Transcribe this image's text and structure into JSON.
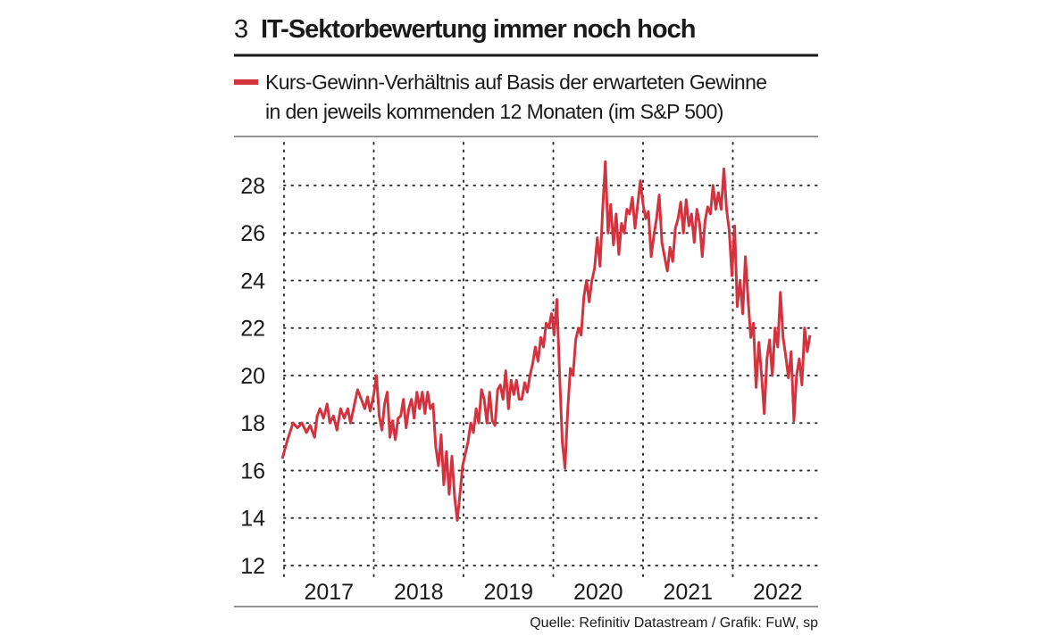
{
  "chart_data": {
    "type": "line",
    "number": "3",
    "title": "IT-Sektorbewertung immer noch hoch",
    "source": "Quelle: Refinitiv Datastream / Grafik: FuW, sp",
    "xlim": [
      2016.95,
      2022.97
    ],
    "xticks": [
      {
        "value": 2017,
        "label": "2017"
      },
      {
        "value": 2018,
        "label": "2018"
      },
      {
        "value": 2019,
        "label": "2019"
      },
      {
        "value": 2020,
        "label": "2020"
      },
      {
        "value": 2021,
        "label": "2021"
      },
      {
        "value": 2022,
        "label": "2022"
      }
    ],
    "ylim": [
      12,
      29.8
    ],
    "yticks": [
      12,
      14,
      16,
      18,
      20,
      22,
      24,
      26,
      28
    ],
    "grid": true,
    "x": [
      2016.98,
      2017.04,
      2017.1,
      2017.15,
      2017.2,
      2017.25,
      2017.29,
      2017.34,
      2017.37,
      2017.4,
      2017.44,
      2017.48,
      2017.51,
      2017.55,
      2017.59,
      2017.63,
      2017.67,
      2017.71,
      2017.74,
      2017.78,
      2017.82,
      2017.86,
      2017.9,
      2017.93,
      2017.96,
      2018,
      2018.03,
      2018.06,
      2018.09,
      2018.12,
      2018.15,
      2018.18,
      2018.21,
      2018.24,
      2018.27,
      2018.3,
      2018.33,
      2018.36,
      2018.39,
      2018.42,
      2018.45,
      2018.48,
      2018.51,
      2018.54,
      2018.57,
      2018.6,
      2018.63,
      2018.66,
      2018.69,
      2018.72,
      2018.75,
      2018.78,
      2018.81,
      2018.84,
      2018.87,
      2018.9,
      2018.93,
      2018.96,
      2018.99,
      2019.02,
      2019.05,
      2019.08,
      2019.11,
      2019.14,
      2019.17,
      2019.2,
      2019.23,
      2019.26,
      2019.29,
      2019.32,
      2019.35,
      2019.38,
      2019.41,
      2019.44,
      2019.47,
      2019.5,
      2019.53,
      2019.56,
      2019.59,
      2019.62,
      2019.65,
      2019.68,
      2019.71,
      2019.74,
      2019.77,
      2019.8,
      2019.83,
      2019.86,
      2019.89,
      2019.92,
      2019.95,
      2019.98,
      2020.01,
      2020.04,
      2020.07,
      2020.1,
      2020.13,
      2020.16,
      2020.19,
      2020.22,
      2020.25,
      2020.28,
      2020.31,
      2020.34,
      2020.37,
      2020.4,
      2020.43,
      2020.46,
      2020.49,
      2020.52,
      2020.55,
      2020.58,
      2020.61,
      2020.64,
      2020.67,
      2020.7,
      2020.73,
      2020.76,
      2020.79,
      2020.82,
      2020.85,
      2020.88,
      2020.91,
      2020.94,
      2020.97,
      2021,
      2021.03,
      2021.06,
      2021.09,
      2021.12,
      2021.15,
      2021.18,
      2021.21,
      2021.24,
      2021.27,
      2021.3,
      2021.33,
      2021.36,
      2021.39,
      2021.42,
      2021.45,
      2021.48,
      2021.51,
      2021.54,
      2021.57,
      2021.6,
      2021.63,
      2021.66,
      2021.69,
      2021.72,
      2021.75,
      2021.78,
      2021.81,
      2021.84,
      2021.87,
      2021.9,
      2021.93,
      2021.96,
      2021.99,
      2022.02,
      2022.05,
      2022.08,
      2022.11,
      2022.14,
      2022.17,
      2022.2,
      2022.23,
      2022.26,
      2022.29,
      2022.32,
      2022.35,
      2022.38,
      2022.41,
      2022.44,
      2022.47,
      2022.5,
      2022.53,
      2022.56,
      2022.59,
      2022.62,
      2022.65,
      2022.68,
      2022.71,
      2022.74,
      2022.77,
      2022.8,
      2022.83,
      2022.86
    ],
    "series": [
      {
        "name": "Kurs-Gewinn-Verhältnis auf Basis der erwarteten Gewinne\nin den jeweils kommenden 12 Monaten (im S&P 500)",
        "color": "#d3333f",
        "values": [
          16.5,
          17.3,
          18.0,
          17.8,
          18.0,
          17.6,
          17.9,
          17.4,
          18.3,
          18.6,
          18.2,
          18.8,
          18.0,
          18.3,
          17.7,
          18.6,
          18.2,
          18.6,
          18.0,
          18.7,
          19.4,
          19.0,
          18.6,
          19.1,
          18.5,
          19.2,
          20.0,
          18.3,
          17.7,
          18.8,
          19.3,
          17.4,
          18.1,
          17.3,
          18.2,
          18.3,
          19.0,
          17.8,
          18.6,
          19.0,
          18.2,
          19.3,
          18.6,
          19.3,
          18.4,
          19.3,
          18.6,
          18.8,
          17.0,
          16.2,
          17.5,
          15.4,
          16.8,
          15.0,
          16.6,
          14.9,
          13.9,
          15.0,
          16.2,
          16.7,
          17.2,
          18.0,
          17.6,
          18.6,
          18.0,
          19.4,
          19.0,
          18.0,
          19.3,
          18.1,
          17.9,
          19.4,
          19.6,
          19.0,
          20.2,
          18.6,
          19.8,
          19.2,
          19.8,
          19.0,
          19.0,
          19.7,
          19.3,
          20.0,
          20.5,
          21.2,
          20.6,
          21.6,
          21.2,
          22.2,
          22.0,
          22.6,
          21.7,
          23.2,
          20.0,
          17.2,
          16.1,
          18.5,
          20.3,
          20.0,
          21.5,
          22.0,
          21.7,
          23.3,
          24.0,
          23.1,
          24.0,
          24.5,
          25.8,
          24.6,
          27.0,
          29.0,
          26.0,
          27.2,
          25.5,
          26.8,
          25.1,
          26.4,
          26.0,
          27.0,
          26.8,
          27.5,
          26.2,
          27.2,
          28.2,
          27.2,
          26.6,
          26.9,
          25.0,
          25.9,
          26.6,
          27.6,
          25.6,
          25.0,
          24.4,
          25.4,
          24.8,
          26.2,
          26.6,
          27.3,
          26.0,
          27.4,
          26.3,
          26.8,
          25.6,
          27.0,
          26.4,
          25.0,
          26.5,
          27.1,
          26.8,
          28.0,
          27.0,
          27.7,
          27.0,
          28.7,
          27.0,
          26.1,
          24.2,
          26.3,
          22.9,
          24.0,
          22.6,
          25.0,
          23.2,
          21.6,
          22.2,
          19.5,
          21.4,
          20.0,
          18.4,
          20.7,
          21.5,
          20.0,
          22.0,
          21.2,
          23.5,
          21.6,
          20.8,
          19.9,
          21.0,
          18.1,
          20.0,
          20.7,
          19.6,
          22.0,
          21.0,
          21.7
        ]
      }
    ]
  }
}
